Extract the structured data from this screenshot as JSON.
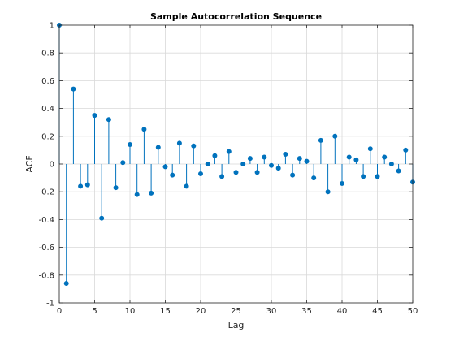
{
  "chart_data": {
    "type": "stem",
    "title": "Sample Autocorrelation Sequence",
    "xlabel": "Lag",
    "ylabel": "ACF",
    "xlim": [
      0,
      50
    ],
    "ylim": [
      -1,
      1
    ],
    "xticks": [
      0,
      5,
      10,
      15,
      20,
      25,
      30,
      35,
      40,
      45,
      50
    ],
    "yticks": [
      -1,
      -0.8,
      -0.6,
      -0.4,
      -0.2,
      0,
      0.2,
      0.4,
      0.6,
      0.8,
      1
    ],
    "xtick_labels": [
      "0",
      "5",
      "10",
      "15",
      "20",
      "25",
      "30",
      "35",
      "40",
      "45",
      "50"
    ],
    "ytick_labels": [
      "-1",
      "-0.8",
      "-0.6",
      "-0.4",
      "-0.2",
      "0",
      "0.2",
      "0.4",
      "0.6",
      "0.8",
      "1"
    ],
    "grid": true,
    "series": [
      {
        "x": [
          0,
          1,
          2,
          3,
          4,
          5,
          6,
          7,
          8,
          9,
          10,
          11,
          12,
          13,
          14,
          15,
          16,
          17,
          18,
          19,
          20,
          21,
          22,
          23,
          24,
          25,
          26,
          27,
          28,
          29,
          30,
          31,
          32,
          33,
          34,
          35,
          36,
          37,
          38,
          39,
          40,
          41,
          42,
          43,
          44,
          45,
          46,
          47,
          48,
          49,
          50
        ],
        "values": [
          1.0,
          -0.86,
          0.54,
          -0.16,
          -0.15,
          0.35,
          -0.39,
          0.32,
          -0.17,
          0.01,
          0.14,
          -0.22,
          0.25,
          -0.21,
          0.12,
          -0.02,
          -0.08,
          0.15,
          -0.16,
          0.13,
          -0.07,
          0.0,
          0.06,
          -0.09,
          0.09,
          -0.06,
          0.0,
          0.04,
          -0.06,
          0.05,
          -0.01,
          -0.03,
          0.07,
          -0.08,
          0.04,
          0.02,
          -0.1,
          0.17,
          -0.2,
          0.2,
          -0.14,
          0.05,
          0.03,
          -0.09,
          0.11,
          -0.09,
          0.05,
          0.0,
          -0.05,
          0.1,
          -0.13
        ]
      }
    ],
    "colors": {
      "stem": "#0072bd",
      "grid": "#d9d9d9",
      "axis": "#262626"
    }
  }
}
